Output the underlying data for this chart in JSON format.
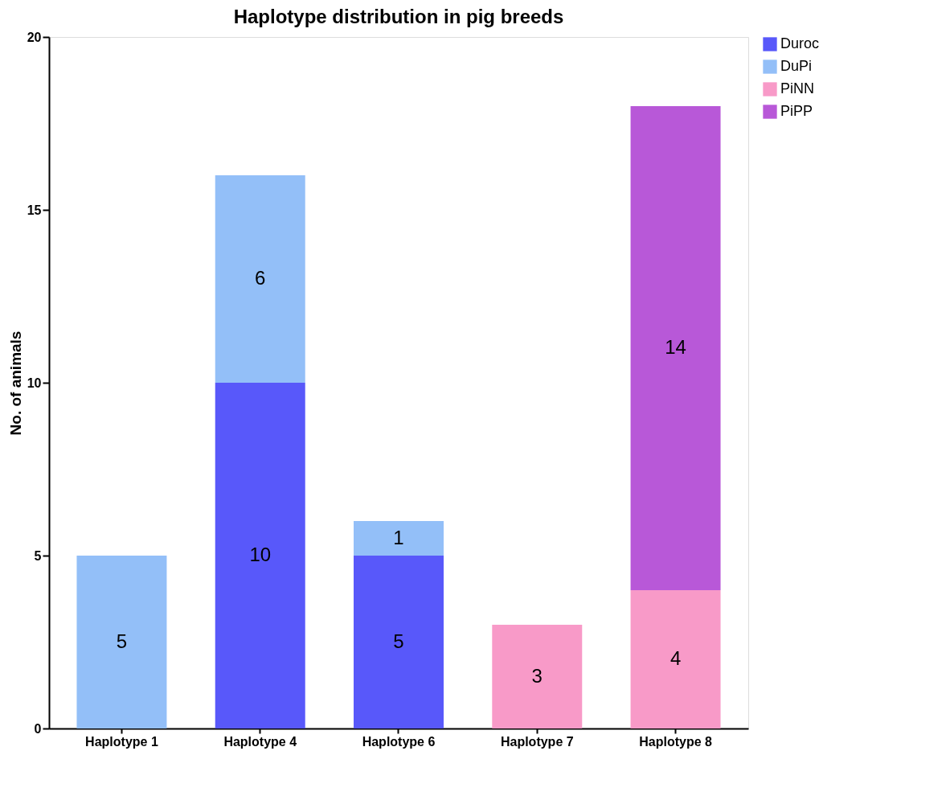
{
  "chart_data": {
    "type": "bar",
    "title": "Haplotype distribution in pig breeds",
    "ylabel": "No. of animals",
    "categories": [
      "Haplotype 1",
      "Haplotype 4",
      "Haplotype 6",
      "Haplotype 7",
      "Haplotype 8"
    ],
    "stacked": true,
    "series": [
      {
        "name": "Duroc",
        "color": "#5858fa",
        "values": [
          null,
          10,
          5,
          null,
          null
        ]
      },
      {
        "name": "DuPi",
        "color": "#93bff8",
        "values": [
          5,
          6,
          1,
          null,
          null
        ]
      },
      {
        "name": "PiNN",
        "color": "#f89ac8",
        "values": [
          null,
          null,
          null,
          3,
          4
        ]
      },
      {
        "name": "PiPP",
        "color": "#b858d8",
        "values": [
          null,
          null,
          null,
          null,
          14
        ]
      }
    ],
    "ylim": [
      0,
      20
    ],
    "yticks": [
      0,
      5,
      10,
      15,
      20
    ],
    "grid": false,
    "legend": "top right",
    "data_labels": true
  }
}
